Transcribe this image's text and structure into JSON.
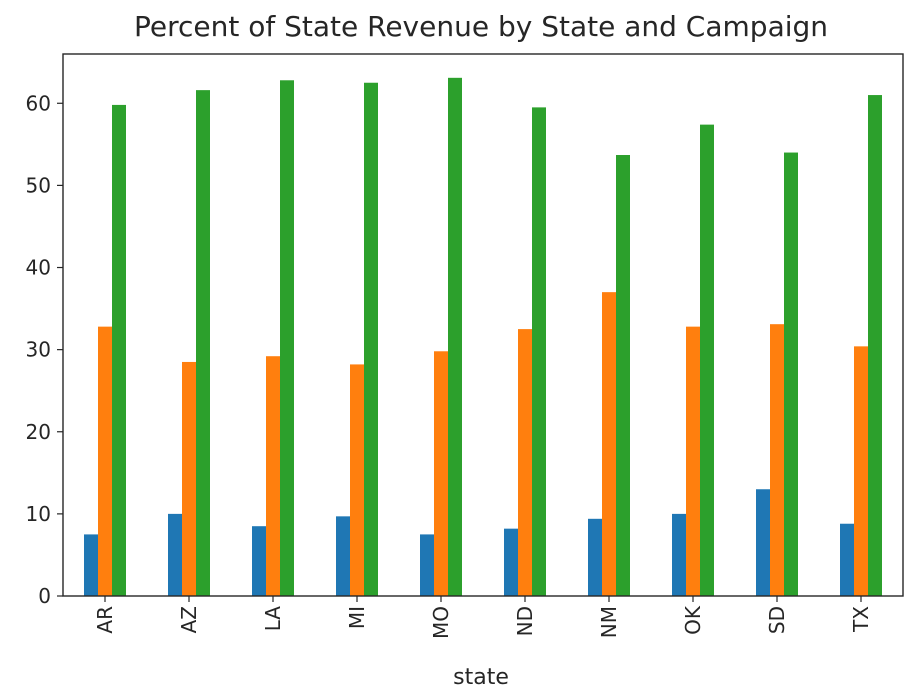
{
  "chart_data": {
    "type": "bar",
    "title": "Percent of State Revenue by State and Campaign",
    "xlabel": "state",
    "ylabel": "",
    "categories": [
      "AR",
      "AZ",
      "LA",
      "MI",
      "MO",
      "ND",
      "NM",
      "OK",
      "SD",
      "TX"
    ],
    "ylim": [
      0,
      66
    ],
    "yticks": [
      0,
      10,
      20,
      30,
      40,
      50,
      60
    ],
    "legend": "none",
    "grid": false,
    "series": [
      {
        "color": "#1f77b4",
        "values": [
          7.5,
          10.0,
          8.5,
          9.7,
          7.5,
          8.2,
          9.4,
          10.0,
          13.0,
          8.8
        ]
      },
      {
        "color": "#ff7f0e",
        "values": [
          32.8,
          28.5,
          29.2,
          28.2,
          29.8,
          32.5,
          37.0,
          32.8,
          33.1,
          30.4
        ]
      },
      {
        "color": "#2ca02c",
        "values": [
          59.8,
          61.6,
          62.8,
          62.5,
          63.1,
          59.5,
          53.7,
          57.4,
          54.0,
          61.0
        ]
      }
    ]
  }
}
